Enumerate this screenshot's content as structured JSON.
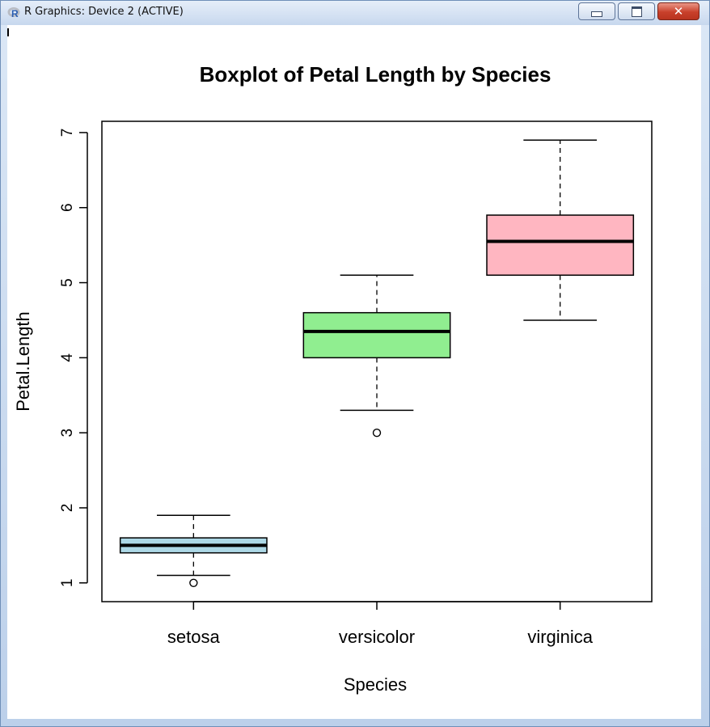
{
  "window": {
    "title": "R Graphics: Device 2 (ACTIVE)",
    "buttons": {
      "minimize": "minimize",
      "maximize": "maximize",
      "close": "✕"
    }
  },
  "colors": {
    "setosa": "#add8e6",
    "versicolor": "#90ee90",
    "virginica": "#ffb6c1"
  },
  "chart_data": {
    "type": "boxplot",
    "title": "Boxplot of Petal Length by Species",
    "xlabel": "Species",
    "ylabel": "Petal.Length",
    "ylim": [
      0.75,
      7.15
    ],
    "yticks": [
      1,
      2,
      3,
      4,
      5,
      6,
      7
    ],
    "grid": false,
    "categories": [
      "setosa",
      "versicolor",
      "virginica"
    ],
    "boxes": [
      {
        "category": "setosa",
        "whisker_low": 1.1,
        "q1": 1.4,
        "median": 1.5,
        "q3": 1.6,
        "whisker_high": 1.9,
        "outliers": [
          1.0
        ]
      },
      {
        "category": "versicolor",
        "whisker_low": 3.3,
        "q1": 4.0,
        "median": 4.35,
        "q3": 4.6,
        "whisker_high": 5.1,
        "outliers": [
          3.0
        ]
      },
      {
        "category": "virginica",
        "whisker_low": 4.5,
        "q1": 5.1,
        "median": 5.55,
        "q3": 5.9,
        "whisker_high": 6.9,
        "outliers": []
      }
    ]
  }
}
